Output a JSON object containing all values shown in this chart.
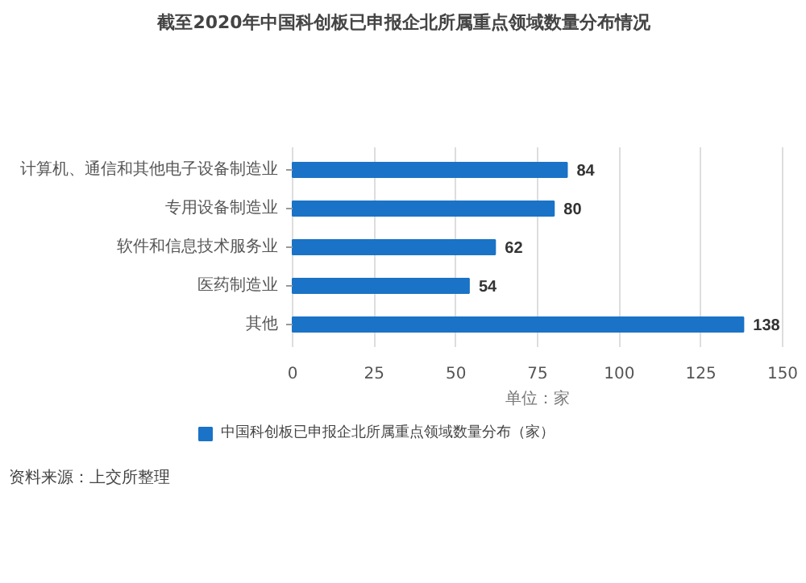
{
  "chart_data": {
    "type": "bar",
    "orientation": "horizontal",
    "title": "截至2020年中国科创板已申报企北所属重点领域数量分布情况",
    "categories": [
      "计算机、通信和其他电子设备制造业",
      "专用设备制造业",
      "软件和信息技术服务业",
      "医药制造业",
      "其他"
    ],
    "series": [
      {
        "name": "中国科创板已申报企北所属重点领域数量分布（家）",
        "color": "#1a73c6",
        "values": [
          84,
          80,
          62,
          54,
          138
        ]
      }
    ],
    "xlim": [
      0,
      150
    ],
    "xticks": [
      0,
      25,
      50,
      75,
      100,
      125,
      150
    ],
    "xlabel": "单位：家",
    "grid": "x",
    "data_labels": true,
    "legend": "bottom",
    "annotations": [
      "资料来源：上交所整理"
    ]
  }
}
